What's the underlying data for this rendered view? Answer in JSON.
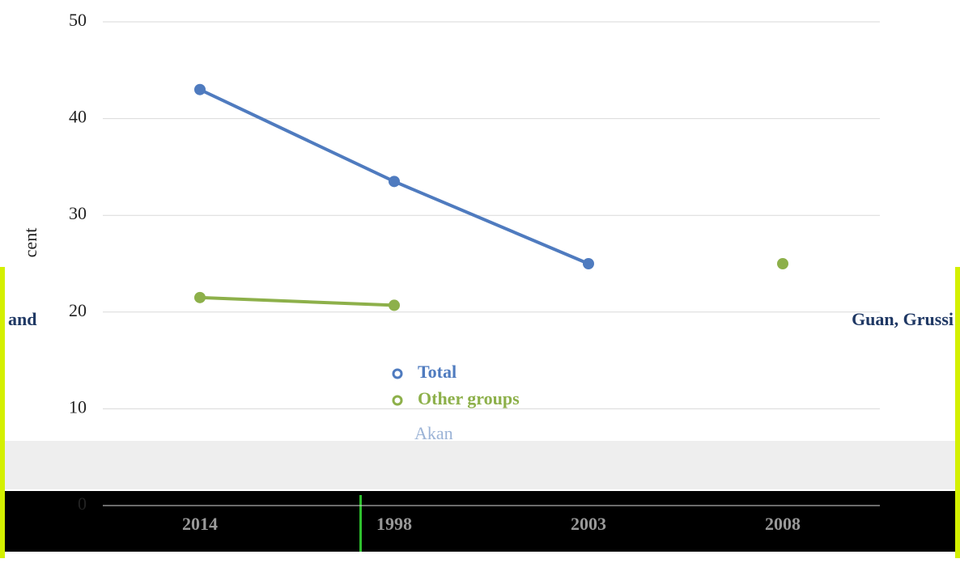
{
  "chart_data": {
    "type": "line",
    "y_label": "cent",
    "categories": [
      "2014",
      "1998",
      "2003",
      "2008"
    ],
    "series": [
      {
        "name": "Total",
        "color": "#4f7bbf",
        "values": [
          43,
          33.5,
          25,
          null
        ]
      },
      {
        "name": "Other groups",
        "color": "#8db04a",
        "values": [
          21.5,
          20.7,
          null,
          25
        ]
      }
    ],
    "annotations": [
      "and",
      "Akan",
      "Guan, Grussi"
    ],
    "ylim": [
      0,
      50
    ],
    "yticks": [
      0,
      10,
      20,
      30,
      40,
      50
    ],
    "grid": true
  }
}
